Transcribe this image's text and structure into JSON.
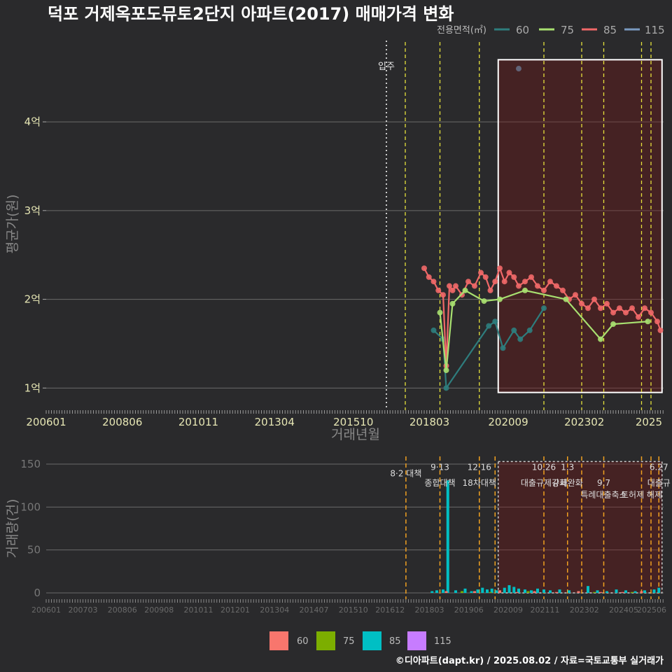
{
  "chart_data": [
    {
      "type": "line",
      "title": "덕포 거제옥포도뮤토2단지 아파트(2017) 매매가격 변화",
      "xlabel": "거래년월",
      "ylabel": "평균가(원)",
      "legend_title": "전용면적(㎡)",
      "legend": [
        {
          "name": "60",
          "color": "#2e7d7d"
        },
        {
          "name": "75",
          "color": "#a8e070"
        },
        {
          "name": "85",
          "color": "#f06868"
        },
        {
          "name": "115",
          "color": "#7a9ac0"
        }
      ],
      "x_range": [
        2006.0,
        2025.6
      ],
      "ylim": [
        0.75,
        4.9
      ],
      "y_ticks": [
        {
          "v": 1,
          "label": "1억"
        },
        {
          "v": 2,
          "label": "2억"
        },
        {
          "v": 3,
          "label": "3억"
        },
        {
          "v": 4,
          "label": "4억"
        }
      ],
      "x_ticks": [
        "200601",
        "200806",
        "201011",
        "201304",
        "201510",
        "201803",
        "202009",
        "202302",
        "2025"
      ],
      "x_tick_values": [
        2006.0,
        2008.417,
        2010.833,
        2013.25,
        2015.75,
        2018.167,
        2020.667,
        2023.083,
        2025.5
      ],
      "move_in": {
        "x": 2016.8,
        "label": "입주"
      },
      "policy_lines": [
        2017.4,
        2018.5,
        2019.75,
        2021.8,
        2023.0,
        2023.7,
        2024.9,
        2025.2
      ],
      "highlight": {
        "x0": 2020.35,
        "x1": 2025.55,
        "y0": 0.95,
        "y1": 4.7
      },
      "series": [
        {
          "name": "85",
          "x": [
            2018.0,
            2018.15,
            2018.3,
            2018.45,
            2018.6,
            2018.7,
            2018.8,
            2018.9,
            2019.0,
            2019.2,
            2019.4,
            2019.6,
            2019.8,
            2019.95,
            2020.1,
            2020.25,
            2020.4,
            2020.55,
            2020.7,
            2020.85,
            2021.0,
            2021.2,
            2021.4,
            2021.6,
            2021.8,
            2022.0,
            2022.2,
            2022.4,
            2022.6,
            2022.8,
            2023.0,
            2023.2,
            2023.4,
            2023.6,
            2023.8,
            2024.0,
            2024.2,
            2024.4,
            2024.6,
            2024.8,
            2025.0,
            2025.2,
            2025.4,
            2025.5
          ],
          "values": [
            2.35,
            2.25,
            2.2,
            2.1,
            2.05,
            1.25,
            2.15,
            2.1,
            2.15,
            2.05,
            2.2,
            2.15,
            2.3,
            2.25,
            2.1,
            2.2,
            2.35,
            2.2,
            2.3,
            2.25,
            2.15,
            2.2,
            2.25,
            2.15,
            2.1,
            2.2,
            2.15,
            2.1,
            2.0,
            2.05,
            1.95,
            1.9,
            2.0,
            1.9,
            1.95,
            1.85,
            1.9,
            1.85,
            1.9,
            1.8,
            1.9,
            1.85,
            1.75,
            1.65
          ]
        },
        {
          "name": "75",
          "x": [
            2018.5,
            2018.7,
            2018.9,
            2019.3,
            2019.9,
            2020.4,
            2021.2,
            2022.5,
            2023.6,
            2024.0,
            2025.1
          ],
          "values": [
            1.85,
            1.2,
            1.95,
            2.1,
            1.98,
            2.0,
            2.1,
            2.0,
            1.55,
            1.72,
            1.75
          ]
        },
        {
          "name": "60",
          "x": [
            2018.3,
            2018.6,
            2018.7,
            2020.05,
            2020.25,
            2020.5,
            2020.85,
            2021.05,
            2021.35,
            2021.8
          ],
          "values": [
            1.65,
            1.55,
            1.0,
            1.7,
            1.75,
            1.45,
            1.65,
            1.55,
            1.65,
            1.9
          ]
        },
        {
          "name": "115",
          "x": [
            2021.0
          ],
          "values": [
            4.6
          ]
        }
      ]
    },
    {
      "type": "bar",
      "ylabel": "거래량(건)",
      "ylim": [
        0,
        155
      ],
      "y_ticks": [
        0,
        50,
        100,
        150
      ],
      "x_ticks": [
        "200601",
        "200703",
        "200806",
        "200908",
        "201011",
        "201201",
        "201304",
        "201407",
        "201510",
        "201612",
        "201803",
        "201906",
        "202009",
        "202111",
        "202302",
        "202405",
        "202506"
      ],
      "x_tick_values": [
        2006.0,
        2007.167,
        2008.417,
        2009.583,
        2010.833,
        2012.0,
        2013.25,
        2014.5,
        2015.75,
        2016.917,
        2018.167,
        2019.417,
        2020.667,
        2021.833,
        2023.083,
        2024.333,
        2025.417
      ],
      "highlight": {
        "x0": 2020.35,
        "x1": 2025.55,
        "y0": 0,
        "y1": 153
      },
      "policy_lines": [
        2017.42,
        2018.5,
        2019.75,
        2020.25,
        2021.8,
        2022.55,
        2023.0,
        2023.7,
        2024.9,
        2025.2,
        2025.45
      ],
      "annotations": [
        {
          "text": "8·2 대책",
          "x": 2017.42,
          "y": 140
        },
        {
          "text": "9·13",
          "x": 2018.5,
          "y": 147
        },
        {
          "text": "종합대책",
          "x": 2018.5,
          "y": 129
        },
        {
          "text": "12·16",
          "x": 2019.75,
          "y": 147
        },
        {
          "text": "18차대책",
          "x": 2019.75,
          "y": 129
        },
        {
          "text": "10.26",
          "x": 2021.8,
          "y": 147
        },
        {
          "text": "대출규제강화",
          "x": 2021.8,
          "y": 129
        },
        {
          "text": "1.3",
          "x": 2022.55,
          "y": 147
        },
        {
          "text": "규제완화",
          "x": 2022.55,
          "y": 129
        },
        {
          "text": "9.7",
          "x": 2023.7,
          "y": 129
        },
        {
          "text": "특례대출축소",
          "x": 2023.7,
          "y": 115
        },
        {
          "text": "토허제 해제",
          "x": 2024.9,
          "y": 115
        },
        {
          "text": "6.27",
          "x": 2025.45,
          "y": 147
        },
        {
          "text": "대출규",
          "x": 2025.45,
          "y": 129
        }
      ],
      "legend": [
        {
          "name": "60",
          "color": "#f8766d"
        },
        {
          "name": "75",
          "color": "#7cae00"
        },
        {
          "name": "85",
          "color": "#00bfc4"
        },
        {
          "name": "115",
          "color": "#c77cff"
        }
      ],
      "series": [
        {
          "name": "85",
          "x": [
            2018.25,
            2018.4,
            2018.6,
            2018.75,
            2019.0,
            2019.3,
            2019.5,
            2019.7,
            2019.85,
            2020.0,
            2020.15,
            2020.3,
            2020.55,
            2020.7,
            2020.85,
            2021.0,
            2021.2,
            2021.4,
            2021.6,
            2021.8,
            2022.0,
            2022.3,
            2022.6,
            2022.9,
            2023.2,
            2023.5,
            2023.8,
            2024.1,
            2024.4,
            2024.7,
            2025.0,
            2025.3,
            2025.45
          ],
          "values": [
            2,
            3,
            4,
            131,
            3,
            5,
            2,
            4,
            6,
            4,
            5,
            3,
            6,
            9,
            7,
            5,
            4,
            3,
            5,
            4,
            3,
            4,
            3,
            2,
            8,
            3,
            2,
            4,
            3,
            2,
            3,
            4,
            6
          ]
        },
        {
          "name": "60",
          "x": [
            2018.7,
            2019.6,
            2020.4,
            2020.95,
            2021.5,
            2022.2,
            2022.9,
            2023.6,
            2024.3,
            2024.9
          ],
          "values": [
            2,
            2,
            3,
            1,
            2,
            1,
            2,
            1,
            1,
            2
          ]
        },
        {
          "name": "75",
          "x": [
            2019.2,
            2020.1,
            2021.3,
            2023.4,
            2024.6
          ],
          "values": [
            2,
            1,
            2,
            1,
            1
          ]
        }
      ]
    }
  ],
  "credit": "©디아파트(dapt.kr) / 2025.08.02 / 자료=국토교통부 실거래가"
}
